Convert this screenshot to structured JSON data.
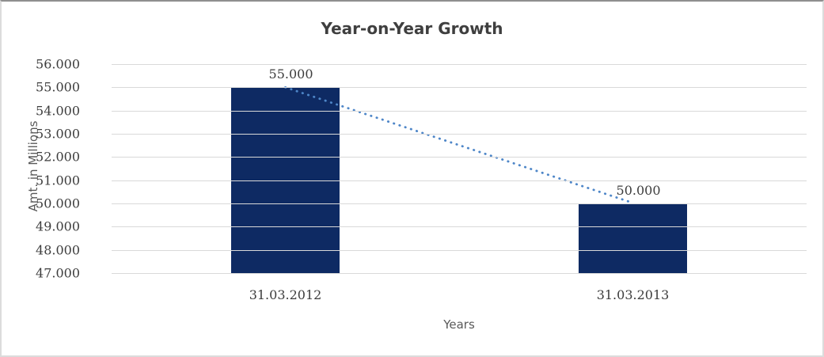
{
  "frame": {
    "background": "#ffffff",
    "border_color": "#dcdcdc",
    "grid_color": "#d9d9d9"
  },
  "chart_data": {
    "type": "bar",
    "title": "Year-on-Year Growth",
    "categories": [
      "31.03.2012",
      "31.03.2013"
    ],
    "values": [
      55000,
      50000
    ],
    "data_labels": [
      "55.000",
      "50.000"
    ],
    "xlabel": "Years",
    "ylabel": "Amt. in Millions",
    "ylim": [
      47000,
      56000
    ],
    "ytick_step": 1000,
    "ytick_labels": [
      "56.000",
      "55.000",
      "54.000",
      "53.000",
      "52.000",
      "51.000",
      "50.000",
      "49.000",
      "48.000",
      "47.000"
    ],
    "grid": true,
    "legend_position": "none",
    "bar_color": "#0e2a63",
    "trendline": {
      "style": "dotted",
      "color": "#4e86c8",
      "from_value": 55000,
      "to_value": 50000
    }
  }
}
